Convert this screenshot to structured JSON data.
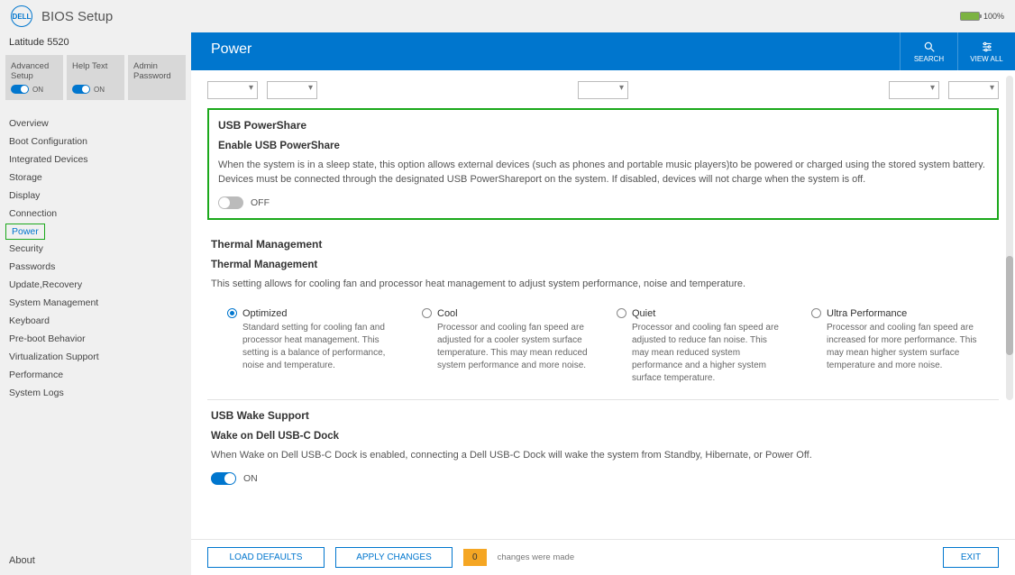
{
  "header": {
    "logo_text": "DELL",
    "title": "BIOS Setup",
    "battery_pct": "100%"
  },
  "sidebar": {
    "device": "Latitude 5520",
    "cards": [
      {
        "label": "Advanced Setup",
        "state": "ON"
      },
      {
        "label": "Help Text",
        "state": "ON"
      },
      {
        "label": "Admin Password",
        "state": ""
      }
    ],
    "nav": [
      "Overview",
      "Boot Configuration",
      "Integrated Devices",
      "Storage",
      "Display",
      "Connection",
      "Power",
      "Security",
      "Passwords",
      "Update,Recovery",
      "System Management",
      "Keyboard",
      "Pre-boot Behavior",
      "Virtualization Support",
      "Performance",
      "System Logs"
    ],
    "active": "Power",
    "about": "About"
  },
  "page": {
    "title": "Power",
    "search_label": "SEARCH",
    "viewall_label": "VIEW ALL"
  },
  "sections": {
    "usb_powershare": {
      "title": "USB PowerShare",
      "sub": "Enable USB PowerShare",
      "desc": "When the system is in a sleep state, this option allows external devices (such as phones and portable music players)to be powered or charged using the stored system battery. Devices must be connected through the designated USB PowerShareport on the system. If disabled, devices will not charge when the system is off.",
      "switch_state": "OFF"
    },
    "thermal": {
      "title": "Thermal Management",
      "sub": "Thermal Management",
      "desc": "This setting allows for cooling fan and processor heat management to adjust system performance, noise and temperature.",
      "options": [
        {
          "label": "Optimized",
          "desc": "Standard setting for cooling fan and processor heat management. This setting is a balance of performance, noise and temperature.",
          "selected": true
        },
        {
          "label": "Cool",
          "desc": "Processor and cooling fan speed are adjusted for a cooler system surface temperature. This may mean reduced system performance and more noise.",
          "selected": false
        },
        {
          "label": "Quiet",
          "desc": "Processor and cooling fan speed are adjusted to reduce fan noise. This may mean reduced system performance and a higher system surface temperature.",
          "selected": false
        },
        {
          "label": "Ultra Performance",
          "desc": "Processor and cooling fan speed are increased for more performance. This may mean higher system surface temperature and more noise.",
          "selected": false
        }
      ]
    },
    "usb_wake": {
      "title": "USB Wake Support",
      "sub": "Wake on Dell USB-C Dock",
      "desc": "When Wake on Dell USB-C Dock is enabled, connecting a Dell USB-C Dock will wake the system from Standby, Hibernate, or Power Off.",
      "switch_state": "ON"
    }
  },
  "footer": {
    "load_defaults": "LOAD DEFAULTS",
    "apply_changes": "APPLY CHANGES",
    "changes_count": "0",
    "changes_text": "changes were made",
    "exit": "EXIT"
  },
  "colors": {
    "accent": "#0076ce",
    "highlight": "#1ba81b",
    "warning": "#f5a623"
  }
}
